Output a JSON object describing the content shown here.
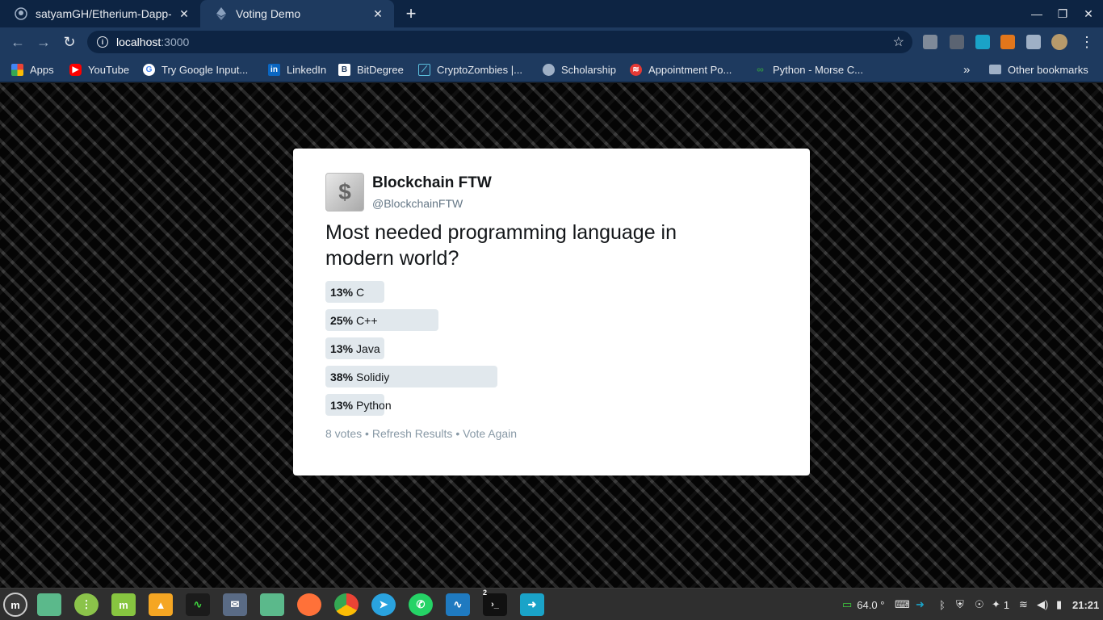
{
  "browser": {
    "tabs": [
      {
        "title": "satyamGH/Etherium-Dapp-demo",
        "active": false
      },
      {
        "title": "Voting Demo",
        "active": true
      }
    ],
    "url_host": "localhost",
    "url_port": ":3000",
    "bookmarks": [
      {
        "label": "Apps",
        "icon": "apps-grid-icon"
      },
      {
        "label": "YouTube",
        "icon": "youtube-icon"
      },
      {
        "label": "Try Google Input...",
        "icon": "google-icon"
      },
      {
        "label": "LinkedIn",
        "icon": "linkedin-icon"
      },
      {
        "label": "BitDegree",
        "icon": "bitdegree-icon"
      },
      {
        "label": "CryptoZombies |...",
        "icon": "cryptozombies-icon"
      },
      {
        "label": "Scholarship",
        "icon": "globe-icon"
      },
      {
        "label": "Appointment Po...",
        "icon": "appointment-icon"
      },
      {
        "label": "Python - Morse C...",
        "icon": "geeksforgeeks-icon"
      }
    ],
    "overflow": "»",
    "other_bookmarks": "Other bookmarks"
  },
  "poll": {
    "display_name": "Blockchain FTW",
    "handle": "@BlockchainFTW",
    "question": "Most needed programming language in modern world?",
    "options": [
      {
        "percent": "13%",
        "label": "C",
        "share": 0.13
      },
      {
        "percent": "25%",
        "label": "C++",
        "share": 0.25
      },
      {
        "percent": "13%",
        "label": "Java",
        "share": 0.13
      },
      {
        "percent": "38%",
        "label": "Solidiy",
        "share": 0.38
      },
      {
        "percent": "13%",
        "label": "Python",
        "share": 0.13
      }
    ],
    "votes": "8 votes",
    "separator": "•",
    "refresh": "Refresh Results",
    "vote_again": "Vote Again"
  },
  "taskbar": {
    "temperature": "64.0 °",
    "notification_count": "1",
    "clock": "21:21",
    "terminal_badge": "2"
  }
}
